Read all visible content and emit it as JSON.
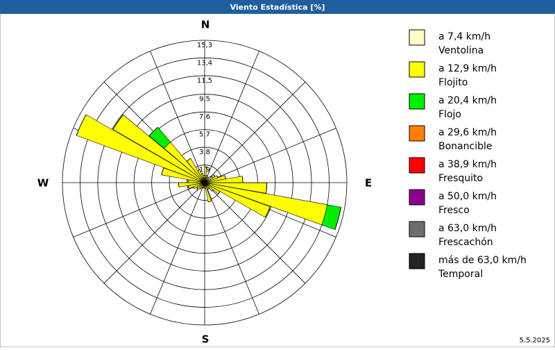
{
  "chart_data": {
    "type": "windrose",
    "title": "Viento Estadística [%]",
    "date": "5.5.2025",
    "compass": {
      "N": "N",
      "E": "E",
      "S": "S",
      "W": "W"
    },
    "directions": [
      5,
      15,
      25,
      35,
      45,
      55,
      65,
      75,
      85,
      95,
      105,
      115,
      125,
      135,
      145,
      155,
      165,
      175,
      185,
      195,
      205,
      215,
      225,
      235,
      245,
      255,
      265,
      275,
      285,
      295,
      305,
      315,
      325,
      335,
      345,
      355
    ],
    "ylim": [
      0,
      15.3
    ],
    "yticks": [
      {
        "value": 1.9,
        "label": "1,9"
      },
      {
        "value": 3.8,
        "label": "3,8"
      },
      {
        "value": 5.7,
        "label": "5,7"
      },
      {
        "value": 7.6,
        "label": "7,6"
      },
      {
        "value": 9.5,
        "label": "9,5"
      },
      {
        "value": 11.5,
        "label": "11,5"
      },
      {
        "value": 13.4,
        "label": "13,4"
      },
      {
        "value": 15.3,
        "label": "15,3"
      }
    ],
    "series": [
      {
        "speed": "a 7,4 km/h",
        "name": "Ventolina",
        "color": "#ffffc8",
        "values": [
          0.5,
          0.5,
          0.6,
          0.7,
          0.9,
          1.0,
          0.7,
          0.5,
          0.5,
          0.5,
          0.5,
          0.4,
          0.4,
          0.4,
          0.3,
          0.3,
          0.3,
          0.3,
          0.3,
          0.3,
          0.3,
          0.3,
          0.3,
          0.3,
          0.3,
          0.3,
          0.3,
          0.3,
          0.4,
          0.5,
          0.5,
          0.5,
          0.5,
          0.5,
          0.5,
          0.5
        ]
      },
      {
        "speed": "a 12,9 km/h",
        "name": "Flojito",
        "color": "#ffff00",
        "values": [
          1.2,
          0.3,
          0,
          0,
          0,
          0.3,
          0.8,
          1.8,
          3.6,
          6.2,
          12.9,
          7.1,
          1.5,
          0.8,
          0.5,
          0.5,
          1.8,
          0.3,
          0.2,
          0.3,
          0.3,
          0.5,
          0.8,
          0.7,
          1.0,
          1.5,
          2.5,
          1.5,
          4.3,
          14.2,
          10.9,
          5.2,
          2.5,
          1.0,
          0.5,
          0.3
        ]
      },
      {
        "speed": "a 20,4 km/h",
        "name": "Flojo",
        "color": "#00ee00",
        "values": [
          0,
          0,
          0,
          0,
          0,
          0,
          0,
          0,
          0,
          0,
          1.5,
          0,
          0,
          0,
          0,
          0,
          0,
          0,
          0,
          0,
          0,
          0,
          0,
          0,
          0,
          0,
          0,
          0,
          0,
          0,
          0,
          2.1,
          0,
          0,
          0,
          0
        ]
      },
      {
        "speed": "a 29,6 km/h",
        "name": "Bonancible",
        "color": "#ff8000",
        "values": [
          0,
          0,
          0,
          0,
          0,
          0,
          0,
          0,
          0,
          0,
          0,
          0,
          0,
          0,
          0,
          0,
          0,
          0,
          0,
          0,
          0,
          0,
          0,
          0,
          0,
          0,
          0,
          0,
          0,
          0,
          0,
          0,
          0,
          0,
          0,
          0
        ]
      },
      {
        "speed": "a 38,9 km/h",
        "name": "Fresquito",
        "color": "#ff0000",
        "values": [
          0,
          0,
          0,
          0,
          0,
          0,
          0,
          0,
          0,
          0,
          0,
          0,
          0,
          0,
          0,
          0,
          0,
          0,
          0,
          0,
          0,
          0,
          0,
          0,
          0,
          0,
          0,
          0,
          0,
          0,
          0,
          0,
          0,
          0,
          0,
          0
        ]
      },
      {
        "speed": "a 50,0 km/h",
        "name": "Fresco",
        "color": "#8b008b",
        "values": [
          0,
          0,
          0,
          0,
          0,
          0,
          0,
          0,
          0,
          0,
          0,
          0,
          0,
          0,
          0,
          0,
          0,
          0,
          0,
          0,
          0,
          0,
          0,
          0,
          0,
          0,
          0,
          0,
          0,
          0,
          0,
          0,
          0,
          0,
          0,
          0
        ]
      },
      {
        "speed": "a 63,0 km/h",
        "name": "Frescachón",
        "color": "#6e6e6e",
        "values": [
          0,
          0,
          0,
          0,
          0,
          0,
          0,
          0,
          0,
          0,
          0,
          0,
          0,
          0,
          0,
          0,
          0,
          0,
          0,
          0,
          0,
          0,
          0,
          0,
          0,
          0,
          0,
          0,
          0,
          0,
          0,
          0,
          0,
          0,
          0,
          0
        ]
      },
      {
        "speed": "más de 63,0 km/h",
        "name": "Temporal",
        "color": "#222222",
        "values": [
          0,
          0,
          0,
          0,
          0,
          0,
          0,
          0,
          0,
          0,
          0,
          0,
          0,
          0,
          0,
          0,
          0,
          0,
          0,
          0,
          0,
          0,
          0,
          0,
          0,
          0,
          0,
          0,
          0,
          0,
          0,
          0,
          0,
          0,
          0,
          0
        ]
      }
    ]
  }
}
